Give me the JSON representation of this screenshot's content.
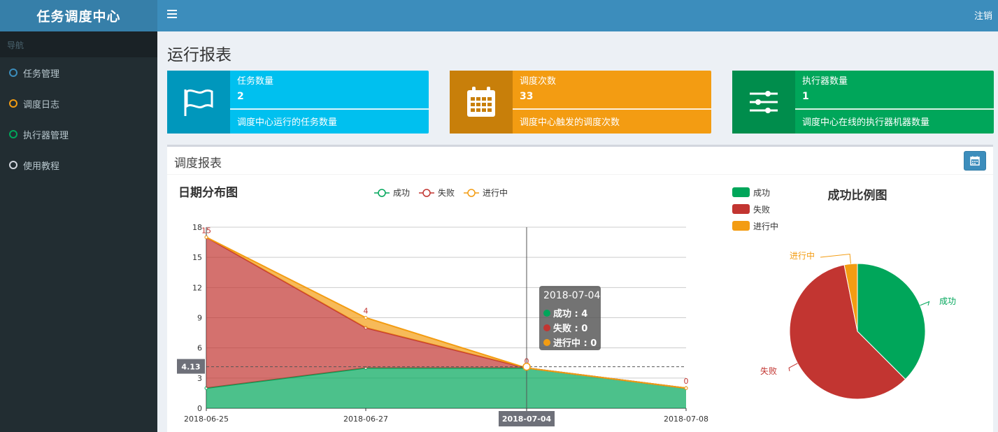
{
  "app": {
    "title": "任务调度中心",
    "logout_label": "注销"
  },
  "sidebar": {
    "header": "导航",
    "items": [
      {
        "label": "任务管理",
        "color": "#3c8dbc"
      },
      {
        "label": "调度日志",
        "color": "#f39c12"
      },
      {
        "label": "执行器管理",
        "color": "#00a65a"
      },
      {
        "label": "使用教程",
        "color": "#d2d6de"
      }
    ]
  },
  "page": {
    "title": "运行报表"
  },
  "info_boxes": [
    {
      "label": "任务数量",
      "value": "2",
      "desc": "调度中心运行的任务数量",
      "icon": "flag-icon",
      "color": "#00c0ef",
      "dark": "#0097bc"
    },
    {
      "label": "调度次数",
      "value": "33",
      "desc": "调度中心触发的调度次数",
      "icon": "calendar-icon",
      "color": "#f39c12",
      "dark": "#c87f0a"
    },
    {
      "label": "执行器数量",
      "value": "1",
      "desc": "调度中心在线的执行器机器数量",
      "icon": "sliders-icon",
      "color": "#00a65a",
      "dark": "#008d4c"
    }
  ],
  "report": {
    "title": "调度报表",
    "filter_icon": "calendar-icon"
  },
  "chart_data": [
    {
      "type": "area",
      "title": "日期分布图",
      "categories": [
        "2018-06-25",
        "2018-06-27",
        "2018-07-04",
        "2018-07-08"
      ],
      "stacked": true,
      "series": [
        {
          "name": "成功",
          "values": [
            2,
            4,
            4,
            2
          ],
          "color": "#00a65a"
        },
        {
          "name": "失败",
          "values": [
            15,
            4,
            0,
            0
          ],
          "color": "#c23531"
        },
        {
          "name": "进行中",
          "values": [
            0,
            1,
            0,
            0
          ],
          "color": "#f39c12"
        }
      ],
      "ylim": [
        0,
        18
      ],
      "yticks": [
        0,
        3,
        6,
        9,
        12,
        15,
        18
      ],
      "value_labels": [
        "15",
        "4",
        "0",
        "0"
      ],
      "grid": true,
      "legend": "top-center",
      "tooltip": {
        "title": "2018-07-04",
        "rows": [
          {
            "text": "成功 : 4",
            "color": "#00a65a"
          },
          {
            "text": "失败 : 0",
            "color": "#c23531"
          },
          {
            "text": "进行中 : 0",
            "color": "#f39c12"
          }
        ]
      },
      "crosshair": {
        "y_value": 4.13,
        "y_label": "4.13",
        "x_label": "2018-07-04"
      }
    },
    {
      "type": "pie",
      "title": "成功比例图",
      "legend": "top-left",
      "slices": [
        {
          "name": "成功",
          "value": 12,
          "color": "#00a65a"
        },
        {
          "name": "失败",
          "value": 19,
          "color": "#c23531"
        },
        {
          "name": "进行中",
          "value": 1,
          "color": "#f39c12"
        }
      ]
    }
  ]
}
